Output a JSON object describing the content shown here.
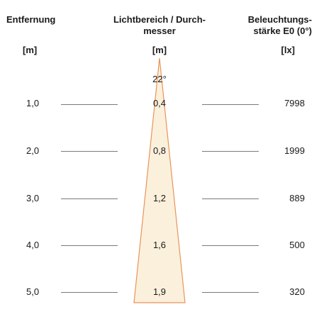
{
  "headers": {
    "distance": "Entfernung",
    "distance_unit": "[m]",
    "diameter_line1": "Lichtbereich / Durch-",
    "diameter_line2": "messer",
    "diameter_unit": "[m]",
    "illuminance_line1": "Beleuchtungs-",
    "illuminance_line2": "stärke E0 (0°)",
    "illuminance_unit": "[lx]"
  },
  "beam_angle": "22°",
  "rows": [
    {
      "distance": "1,0",
      "diameter": "0,4",
      "illuminance": "7998"
    },
    {
      "distance": "2,0",
      "diameter": "0,8",
      "illuminance": "1999"
    },
    {
      "distance": "3,0",
      "diameter": "1,2",
      "illuminance": "889"
    },
    {
      "distance": "4,0",
      "diameter": "1,6",
      "illuminance": "500"
    },
    {
      "distance": "5,0",
      "diameter": "1,9",
      "illuminance": "320"
    }
  ],
  "colors": {
    "beam_fill": "#fbf0dc",
    "beam_outline": "#e8945a",
    "rule": "#7a7a7a"
  }
}
